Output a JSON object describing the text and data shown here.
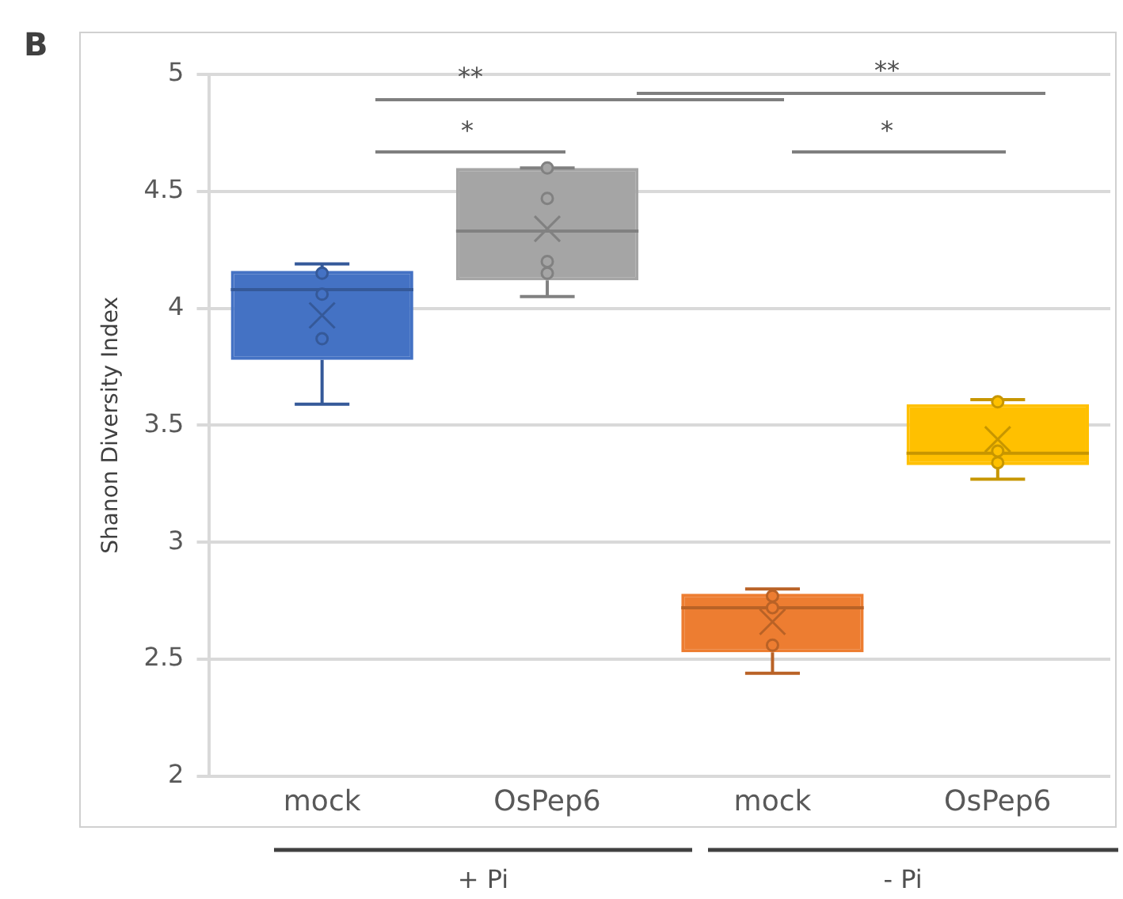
{
  "chart_data": {
    "type": "box",
    "ylabel": "Shanon Diversity Index",
    "categories": [
      "mock",
      "OsPep6",
      "mock",
      "OsPep6"
    ],
    "colors": [
      "#4472c4",
      "#a5a5a5",
      "#ed7d31",
      "#ffc000"
    ],
    "boxes": [
      {
        "low": 3.59,
        "q1": 3.78,
        "median": 4.08,
        "q3": 4.16,
        "high": 4.19,
        "mean": 3.97,
        "outliers": [
          4.15,
          4.06,
          3.87
        ]
      },
      {
        "low": 4.05,
        "q1": 4.12,
        "median": 4.33,
        "q3": 4.6,
        "high": 4.6,
        "mean": 4.34,
        "outliers": [
          4.6,
          4.47,
          4.2,
          4.15
        ]
      },
      {
        "low": 2.44,
        "q1": 2.53,
        "median": 2.72,
        "q3": 2.78,
        "high": 2.8,
        "mean": 2.66,
        "outliers": [
          2.77,
          2.72,
          2.56
        ]
      },
      {
        "low": 3.27,
        "q1": 3.33,
        "median": 3.38,
        "q3": 3.59,
        "high": 3.61,
        "mean": 3.44,
        "outliers": [
          3.6,
          3.39,
          3.34
        ]
      }
    ],
    "ylim": [
      2,
      5
    ],
    "yticks": [
      2,
      2.5,
      3,
      3.5,
      4,
      4.5,
      5
    ],
    "grid": "y",
    "annotations": [
      "B",
      "**",
      "*",
      "**",
      "*",
      "+ Pi",
      "- Pi"
    ]
  }
}
